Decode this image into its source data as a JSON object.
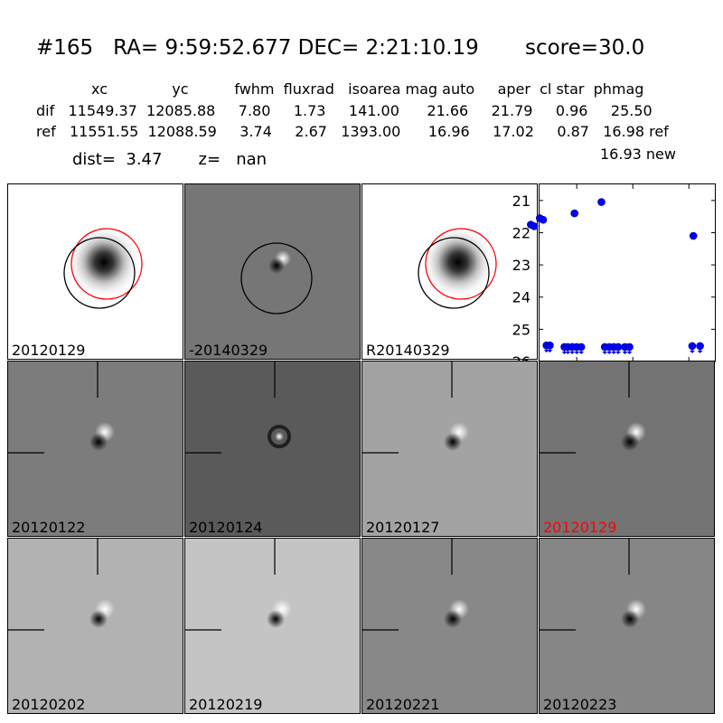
{
  "header": {
    "title": "#165   RA= 9:59:52.677 DEC= 2:21:10.19       score=30.0",
    "col_header": "            xc              yc          fwhm  fluxrad   isoarea mag auto     aper  cl star  phmag",
    "dif_row": "dif   11549.37  12085.88     7.80     1.73     141.00      21.66     21.79     0.96     25.50",
    "ref_row": "ref   11551.55  12088.59     3.74     2.67   1393.00      16.96     17.02     0.87   16.98 ref",
    "new_row": "16.93 new",
    "dist_line": "dist=  3.47       z=   nan"
  },
  "panels": [
    {
      "label": "20120129",
      "bg": "#ffffff",
      "kind": "ref_blob"
    },
    {
      "label": "-20140329",
      "bg": "#767676",
      "kind": "diff_circle"
    },
    {
      "label": "R20140329",
      "bg": "#ffffff",
      "kind": "ref_blob"
    },
    {
      "label": "20120122",
      "bg": "#7c7c7c",
      "kind": "stamp"
    },
    {
      "label": "20120124",
      "bg": "#5a5a5a",
      "kind": "stamp_ring"
    },
    {
      "label": "20120127",
      "bg": "#a3a3a3",
      "kind": "stamp"
    },
    {
      "label": "20120129",
      "bg": "#737373",
      "kind": "stamp",
      "highlight": true
    },
    {
      "label": "20120202",
      "bg": "#b2b2b2",
      "kind": "stamp"
    },
    {
      "label": "20120219",
      "bg": "#c4c4c4",
      "kind": "stamp"
    },
    {
      "label": "20120221",
      "bg": "#888888",
      "kind": "stamp"
    },
    {
      "label": "20120223",
      "bg": "#868686",
      "kind": "stamp"
    }
  ],
  "colors": {
    "highlight": "#ff0000",
    "points": "#0000ff",
    "ref_circle": "#ff0000",
    "det_circle": "#000000"
  },
  "chart_data": {
    "type": "scatter",
    "title": "",
    "xlabel": "",
    "ylabel": "",
    "xlim": [
      -34,
      124
    ],
    "ylim": [
      26,
      20.5
    ],
    "inverted_y": true,
    "x_ticks": [
      0,
      50,
      100
    ],
    "y_ticks": [
      21,
      22,
      23,
      24,
      25,
      26
    ],
    "measurements": [
      {
        "x": -41,
        "y": 21.75,
        "err": 0.08
      },
      {
        "x": -38,
        "y": 21.8,
        "err": 0.08
      },
      {
        "x": -33,
        "y": 21.55,
        "err": 0.06
      },
      {
        "x": -30,
        "y": 21.6,
        "err": 0.06
      },
      {
        "x": -2,
        "y": 21.4,
        "err": 0.06
      },
      {
        "x": 22,
        "y": 21.05,
        "err": 0.05
      },
      {
        "x": 104,
        "y": 22.1,
        "err": 0.1
      }
    ],
    "upper_limits": [
      {
        "x": -27,
        "y": 25.5
      },
      {
        "x": -24,
        "y": 25.5
      },
      {
        "x": -11,
        "y": 25.55
      },
      {
        "x": -8,
        "y": 25.55
      },
      {
        "x": -4,
        "y": 25.55
      },
      {
        "x": 0,
        "y": 25.55
      },
      {
        "x": 4,
        "y": 25.55
      },
      {
        "x": 25,
        "y": 25.55
      },
      {
        "x": 29,
        "y": 25.55
      },
      {
        "x": 33,
        "y": 25.55
      },
      {
        "x": 37,
        "y": 25.55
      },
      {
        "x": 43,
        "y": 25.55
      },
      {
        "x": 47,
        "y": 25.55
      },
      {
        "x": 103,
        "y": 25.52
      },
      {
        "x": 110,
        "y": 25.52
      }
    ]
  }
}
